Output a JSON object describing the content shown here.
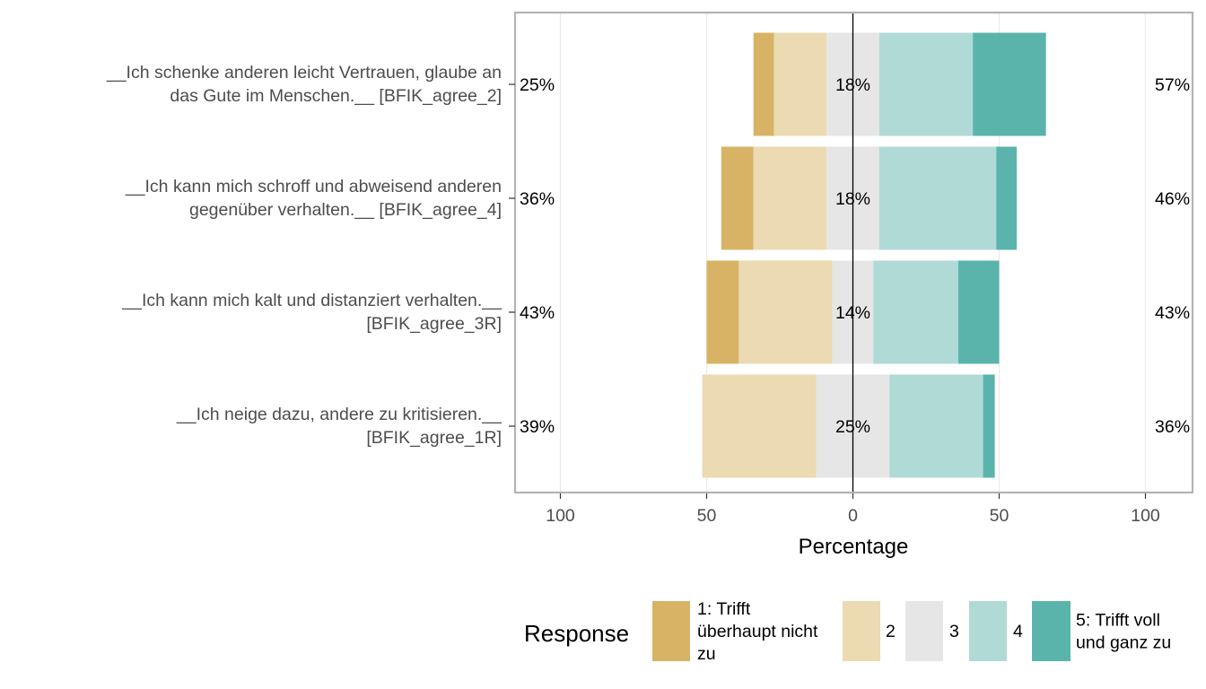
{
  "chart_data": {
    "type": "bar",
    "orientation": "horizontal",
    "stacked": "diverging",
    "categories": [
      [
        "__Ich schenke anderen leicht Vertrauen, glaube an",
        "das Gute im Menschen.__ [BFIK_agree_2]"
      ],
      [
        "__Ich kann mich schroff und abweisend anderen",
        "gegenüber verhalten.__ [BFIK_agree_4]"
      ],
      [
        "__Ich kann mich kalt und distanziert verhalten.__",
        "[BFIK_agree_3R]"
      ],
      [
        "__Ich neige dazu, andere zu kritisieren.__",
        "[BFIK_agree_1R]"
      ]
    ],
    "series": [
      {
        "name": "1: Trifft überhaupt nicht zu",
        "color": "#D8B365",
        "values": [
          7,
          11,
          11,
          0
        ]
      },
      {
        "name": "2",
        "color": "#EBDAB2",
        "values": [
          18,
          25,
          32,
          39
        ]
      },
      {
        "name": "3",
        "color": "#E6E6E6",
        "values": [
          18,
          18,
          14,
          25
        ]
      },
      {
        "name": "4",
        "color": "#B0DAD6",
        "values": [
          32,
          40,
          29,
          32
        ]
      },
      {
        "name": "5: Trifft voll und ganz zu",
        "color": "#5AB4AC",
        "values": [
          25,
          7,
          14,
          4
        ]
      }
    ],
    "left_labels": [
      "25%",
      "36%",
      "43%",
      "39%"
    ],
    "center_labels": [
      "18%",
      "18%",
      "14%",
      "25%"
    ],
    "right_labels": [
      "57%",
      "46%",
      "43%",
      "36%"
    ],
    "xlabel": "Percentage",
    "xlim": [
      -100,
      100
    ],
    "xticks": [
      -100,
      -50,
      0,
      50,
      100
    ],
    "xtick_labels": [
      "100",
      "50",
      "0",
      "50",
      "100"
    ],
    "legend": {
      "title": "Response",
      "position": "bottom",
      "labels": [
        [
          "1: Trifft",
          "überhaupt nicht",
          "zu"
        ],
        [
          "2"
        ],
        [
          "3"
        ],
        [
          "4"
        ],
        [
          "5: Trifft voll",
          "und ganz zu"
        ]
      ]
    },
    "grid": true
  }
}
